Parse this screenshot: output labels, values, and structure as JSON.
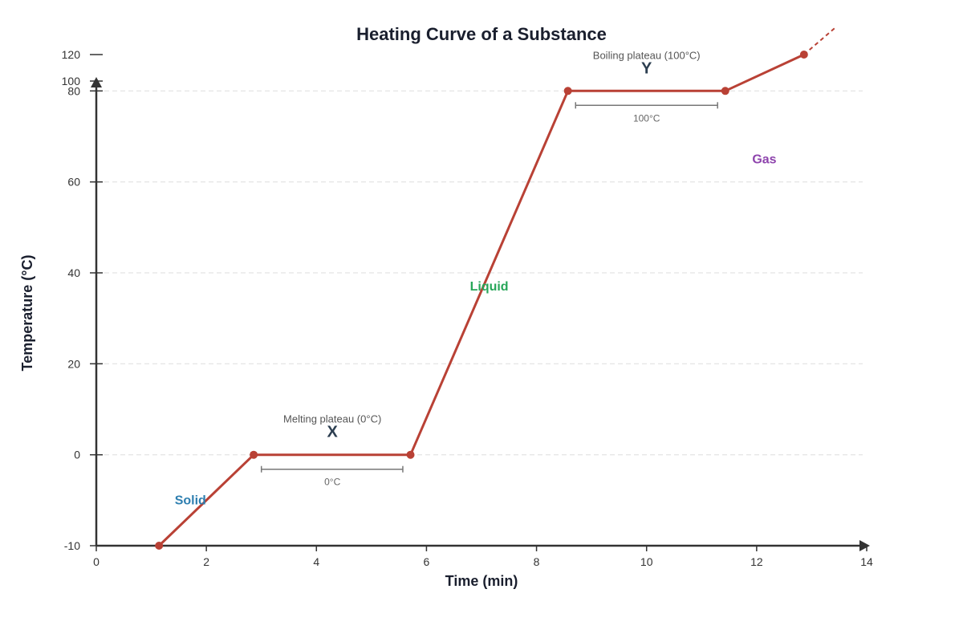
{
  "colors": {
    "curve": "#b94135",
    "axis": "#333333",
    "grid": "#dddddd",
    "solid": "#2e7fb0",
    "liquid": "#27a659",
    "gas": "#8e44ad"
  },
  "chart_data": {
    "type": "line",
    "title": "Heating Curve of a Substance",
    "xlabel": "Time (min)",
    "ylabel": "Temperature (°C)",
    "xlim": [
      0,
      14
    ],
    "x_ticks": [
      {
        "value": 0,
        "label": "0"
      },
      {
        "value": 2,
        "label": "2"
      },
      {
        "value": 4,
        "label": "4"
      },
      {
        "value": 6,
        "label": "6"
      },
      {
        "value": 8,
        "label": "8"
      },
      {
        "value": 10,
        "label": "10"
      },
      {
        "value": 12,
        "label": "12"
      },
      {
        "value": 14,
        "label": "14"
      }
    ],
    "y_ticks": [
      {
        "label": "-10",
        "grid": false
      },
      {
        "label": "0",
        "grid": true
      },
      {
        "label": "20",
        "grid": true
      },
      {
        "label": "40",
        "grid": true
      },
      {
        "label": "60",
        "grid": true
      },
      {
        "label": "80",
        "grid": true
      },
      {
        "label": "100",
        "grid": false
      },
      {
        "label": "120",
        "grid": false
      }
    ],
    "grid": true,
    "points": [
      {
        "x": 1.14,
        "y": "-10"
      },
      {
        "x": 2.86,
        "y": "0"
      },
      {
        "x": 5.71,
        "y": "0"
      },
      {
        "x": 8.57,
        "y": "100"
      },
      {
        "x": 11.43,
        "y": "100"
      },
      {
        "x": 12.86,
        "y": "120"
      }
    ],
    "extension_end": {
      "x": 13.43,
      "y": "128"
    },
    "annotations": {
      "melting_plateau": {
        "label": "Melting plateau (0°C)",
        "letter": "X",
        "bracket_label": "0°C",
        "x_from": 3.0,
        "x_to": 5.57,
        "x_center": 4.29
      },
      "boiling_plateau": {
        "label": "Boiling plateau (100°C)",
        "letter": "Y",
        "bracket_label": "100°C",
        "x_from": 8.71,
        "x_to": 11.29,
        "x_center": 10.0
      }
    },
    "phase_labels": [
      {
        "key": "solid",
        "text": "Solid",
        "x": 1.71,
        "y": "-5"
      },
      {
        "key": "liquid",
        "text": "Liquid",
        "x": 7.14,
        "y": "37"
      },
      {
        "key": "gas",
        "text": "Gas",
        "x": 12.14,
        "y": "65"
      }
    ]
  }
}
